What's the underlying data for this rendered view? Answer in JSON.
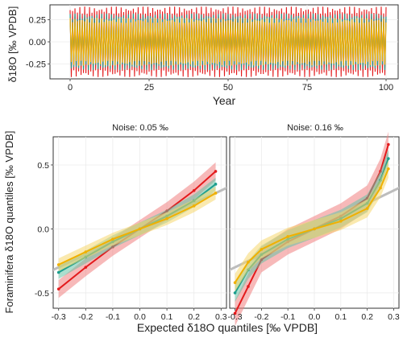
{
  "colors": {
    "red": "#e31a1c",
    "red_band": "#f08080",
    "teal": "#1b9e8e",
    "teal_band": "#66c2a5",
    "yellow": "#f0b000",
    "yellow_band": "#f5d76e",
    "reference_line": "#bdbdbd",
    "panel_border": "#333333",
    "grid": "#ebebeb"
  },
  "chart_data": [
    {
      "type": "line",
      "ylabel": "δ18O [‰ VPDB]",
      "xlabel": "Year",
      "x_ticks": [
        "0",
        "25",
        "50",
        "75",
        "100"
      ],
      "y_ticks": [
        "-0.25",
        "0.00",
        "0.25"
      ],
      "xlim": [
        0,
        100
      ],
      "ylim": [
        -0.42,
        0.42
      ],
      "grid": true,
      "series": [
        {
          "color_key": "red",
          "amplitude": 0.4
        },
        {
          "color_key": "teal",
          "amplitude": 0.32
        },
        {
          "color_key": "yellow",
          "amplitude": 0.27
        }
      ]
    },
    {
      "type": "line",
      "facet_label": "Noise: 0.05 ‰",
      "ylabel": "Foraminifera δ18O quantiles [‰ VPDB]",
      "xlabel": "Expected δ18O quantiles [‰ VPDB]",
      "x_ticks": [
        "-0.3",
        "-0.2",
        "-0.1",
        "0.0",
        "0.1",
        "0.2",
        "0.3"
      ],
      "y_ticks": [
        "-0.5",
        "0.0",
        "0.5"
      ],
      "xlim": [
        -0.32,
        0.32
      ],
      "ylim": [
        -0.62,
        0.72
      ],
      "grid": true,
      "reference_line": {
        "x": [
          -0.33,
          0.33
        ],
        "y": [
          -0.33,
          0.33
        ]
      },
      "series": [
        {
          "color_key": "red",
          "x": [
            -0.3,
            -0.2,
            -0.1,
            0.0,
            0.1,
            0.2,
            0.28
          ],
          "y": [
            -0.47,
            -0.3,
            -0.14,
            0.0,
            0.14,
            0.3,
            0.45
          ],
          "band": 0.07
        },
        {
          "color_key": "teal",
          "x": [
            -0.3,
            -0.2,
            -0.1,
            0.0,
            0.1,
            0.2,
            0.28
          ],
          "y": [
            -0.34,
            -0.22,
            -0.1,
            0.0,
            0.1,
            0.22,
            0.35
          ],
          "band": 0.05
        },
        {
          "color_key": "yellow",
          "x": [
            -0.3,
            -0.2,
            -0.1,
            0.0,
            0.1,
            0.2,
            0.28
          ],
          "y": [
            -0.28,
            -0.18,
            -0.08,
            0.0,
            0.08,
            0.18,
            0.28
          ],
          "band": 0.05
        }
      ]
    },
    {
      "type": "line",
      "facet_label": "Noise: 0.16 ‰",
      "x_ticks": [
        "-0.3",
        "-0.2",
        "-0.1",
        "0.0",
        "0.1",
        "0.2",
        "0.3"
      ],
      "xlim": [
        -0.32,
        0.32
      ],
      "ylim": [
        -0.62,
        0.72
      ],
      "grid": true,
      "reference_line": {
        "x": [
          -0.33,
          0.33
        ],
        "y": [
          -0.33,
          0.33
        ]
      },
      "series": [
        {
          "color_key": "red",
          "x": [
            -0.3,
            -0.25,
            -0.2,
            -0.1,
            0.0,
            0.1,
            0.2,
            0.25,
            0.28
          ],
          "y": [
            -0.66,
            -0.45,
            -0.24,
            -0.1,
            0.0,
            0.1,
            0.24,
            0.45,
            0.66
          ],
          "band": 0.1
        },
        {
          "color_key": "teal",
          "x": [
            -0.3,
            -0.25,
            -0.2,
            -0.1,
            0.0,
            0.1,
            0.2,
            0.25,
            0.28
          ],
          "y": [
            -0.5,
            -0.32,
            -0.2,
            -0.08,
            0.0,
            0.08,
            0.2,
            0.38,
            0.55
          ],
          "band": 0.07
        },
        {
          "color_key": "yellow",
          "x": [
            -0.3,
            -0.25,
            -0.2,
            -0.1,
            0.0,
            0.1,
            0.2,
            0.25,
            0.28
          ],
          "y": [
            -0.42,
            -0.26,
            -0.16,
            -0.06,
            0.0,
            0.06,
            0.16,
            0.32,
            0.47
          ],
          "band": 0.07
        }
      ]
    }
  ]
}
